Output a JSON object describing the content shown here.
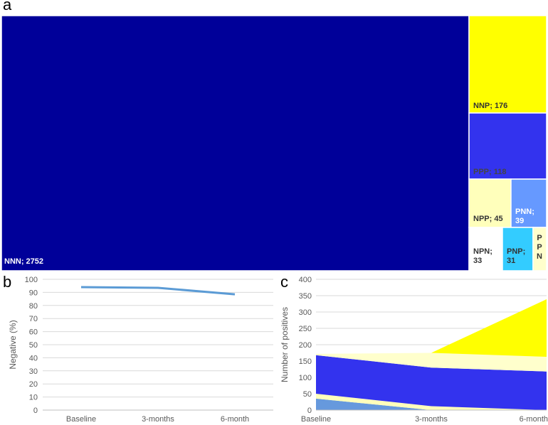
{
  "panels": {
    "a": "a",
    "b": "b",
    "c": "c"
  },
  "chart_data": [
    {
      "type": "treemap",
      "items": [
        {
          "code": "NNN",
          "label": "NNN; 2752",
          "value": 2752,
          "color": "#000099",
          "text_color": "#ffffff"
        },
        {
          "code": "NNP",
          "label": "NNP; 176",
          "value": 176,
          "color": "#ffff00",
          "text_color": "#333333"
        },
        {
          "code": "PPP",
          "label": "PPP; 118",
          "value": 118,
          "color": "#3333ee",
          "text_color": "#444444"
        },
        {
          "code": "NPP",
          "label": "NPP; 45",
          "value": 45,
          "color": "#ffffbb",
          "text_color": "#333333"
        },
        {
          "code": "PNN",
          "label": "PNN; 39",
          "value": 39,
          "color": "#6699ff",
          "text_color": "#ffffff"
        },
        {
          "code": "NPN",
          "label": "NPN; 33",
          "value": 33,
          "color": "#ffffff",
          "text_color": "#333333"
        },
        {
          "code": "PNP",
          "label": "PNP; 31",
          "value": 31,
          "color": "#33ccff",
          "text_color": "#333333"
        },
        {
          "code": "PPN",
          "label": "P P N",
          "value": null,
          "color": "#ffffcc",
          "text_color": "#333333"
        }
      ]
    },
    {
      "type": "line",
      "categories": [
        "Baseline",
        "3-months",
        "6-month"
      ],
      "series": [
        {
          "values": [
            94,
            93.5,
            88.5
          ],
          "color": "#5b9bd5"
        }
      ],
      "ylabel": "Negative (%)",
      "ylim": [
        0,
        100
      ],
      "yticks": [
        "0",
        "10",
        "20",
        "30",
        "40",
        "50",
        "60",
        "70",
        "80",
        "90",
        "100"
      ],
      "grid": true
    },
    {
      "type": "area",
      "categories": [
        "Baseline",
        "3-months",
        "6-month"
      ],
      "series": [
        {
          "values": [
            35,
            0,
            0
          ],
          "color": "#6699dd"
        },
        {
          "values": [
            15,
            12,
            0
          ],
          "color": "#ffffbb"
        },
        {
          "values": [
            118,
            118,
            118
          ],
          "color": "#3333ee"
        },
        {
          "values": [
            4,
            45,
            45
          ],
          "color": "#ffffcc"
        },
        {
          "values": [
            0,
            0,
            176
          ],
          "color": "#ffff00"
        }
      ],
      "ylabel": "Number of positives",
      "ylim": [
        0,
        400
      ],
      "yticks": [
        "0",
        "50",
        "100",
        "150",
        "200",
        "250",
        "300",
        "350",
        "400"
      ],
      "grid": true
    }
  ]
}
